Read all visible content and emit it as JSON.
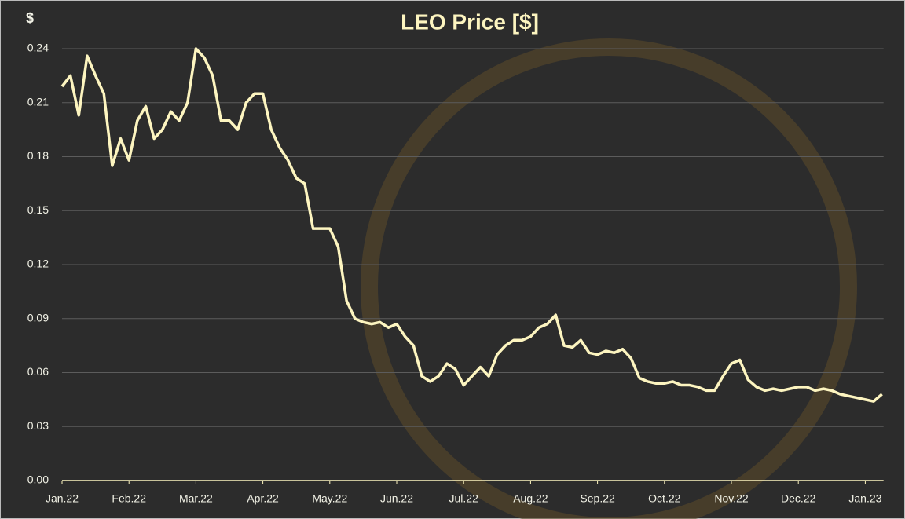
{
  "chart_data": {
    "type": "line",
    "title": "LEO Price [$]",
    "y_label": "$",
    "categories": [
      "Jan.22",
      null,
      null,
      null,
      null,
      null,
      null,
      null,
      "Feb.22",
      null,
      null,
      null,
      null,
      null,
      null,
      null,
      "Mar.22",
      null,
      null,
      null,
      null,
      null,
      null,
      null,
      "Apr.22",
      null,
      null,
      null,
      null,
      null,
      null,
      null,
      "May.22",
      null,
      null,
      null,
      null,
      null,
      null,
      null,
      "Jun.22",
      null,
      null,
      null,
      null,
      null,
      null,
      null,
      "Jul.22",
      null,
      null,
      null,
      null,
      null,
      null,
      null,
      "Aug.22",
      null,
      null,
      null,
      null,
      null,
      null,
      null,
      "Sep.22",
      null,
      null,
      null,
      null,
      null,
      null,
      null,
      "Oct.22",
      null,
      null,
      null,
      null,
      null,
      null,
      null,
      "Nov.22",
      null,
      null,
      null,
      null,
      null,
      null,
      null,
      "Dec.22",
      null,
      null,
      null,
      null,
      null,
      null,
      null,
      "Jan.23",
      null,
      null
    ],
    "series": [
      {
        "name": "LEO",
        "color": "#fdf5c0",
        "values": [
          0.219,
          0.225,
          0.203,
          0.236,
          0.225,
          0.215,
          0.175,
          0.19,
          0.178,
          0.2,
          0.208,
          0.19,
          0.195,
          0.205,
          0.2,
          0.21,
          0.24,
          0.235,
          0.225,
          0.2,
          0.2,
          0.195,
          0.21,
          0.215,
          0.215,
          0.195,
          0.185,
          0.178,
          0.168,
          0.165,
          0.14,
          0.14,
          0.14,
          0.13,
          0.1,
          0.09,
          0.088,
          0.087,
          0.088,
          0.085,
          0.087,
          0.08,
          0.075,
          0.058,
          0.055,
          0.058,
          0.065,
          0.062,
          0.053,
          0.058,
          0.063,
          0.058,
          0.07,
          0.075,
          0.078,
          0.078,
          0.08,
          0.085,
          0.087,
          0.092,
          0.075,
          0.074,
          0.078,
          0.071,
          0.07,
          0.072,
          0.071,
          0.073,
          0.068,
          0.057,
          0.055,
          0.054,
          0.054,
          0.055,
          0.053,
          0.053,
          0.052,
          0.05,
          0.05,
          0.058,
          0.065,
          0.067,
          0.056,
          0.052,
          0.05,
          0.051,
          0.05,
          0.051,
          0.052,
          0.052,
          0.05,
          0.051,
          0.05,
          0.048,
          0.047,
          0.046,
          0.045,
          0.044,
          0.048
        ]
      }
    ],
    "ylim": [
      0,
      0.24
    ],
    "yticks": [
      {
        "value": 0,
        "label": "0.00"
      },
      {
        "value": 0.03,
        "label": "0.03"
      },
      {
        "value": 0.06,
        "label": "0.06"
      },
      {
        "value": 0.09,
        "label": "0.09"
      },
      {
        "value": 0.12,
        "label": "0.12"
      },
      {
        "value": 0.15,
        "label": "0.15"
      },
      {
        "value": 0.18,
        "label": "0.18"
      },
      {
        "value": 0.21,
        "label": "0.21"
      },
      {
        "value": 0.24,
        "label": "0.24"
      }
    ],
    "grid": true
  }
}
